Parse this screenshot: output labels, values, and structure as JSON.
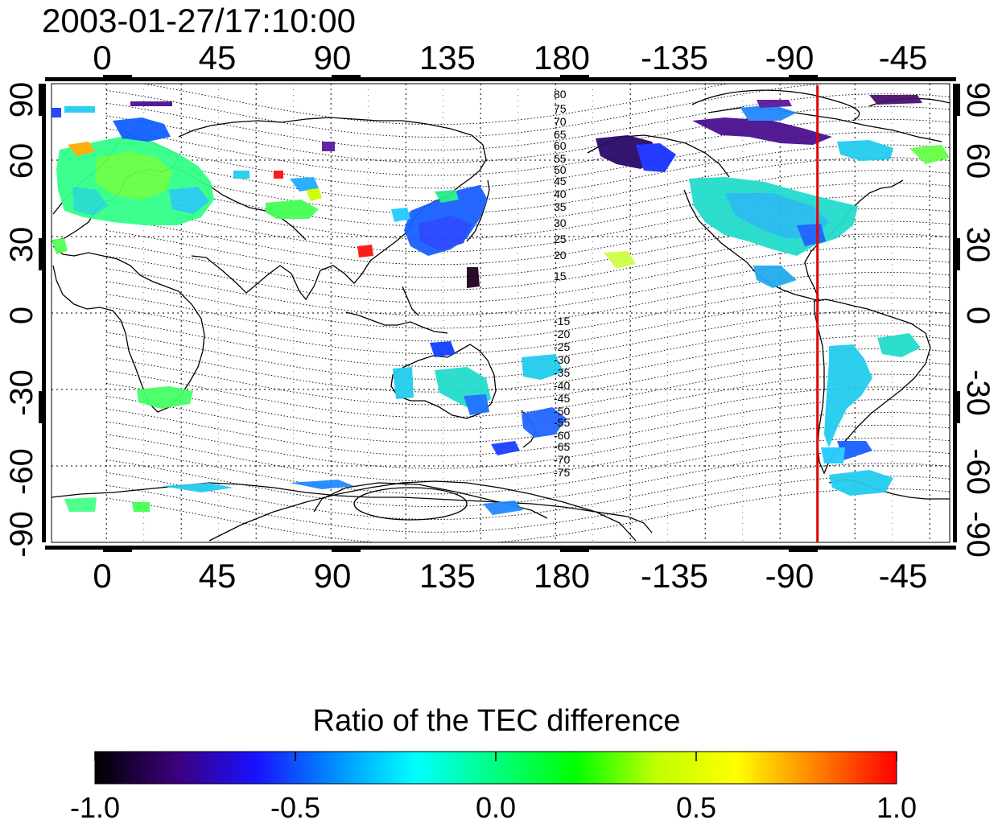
{
  "title": "2003-01-27/17:10:00",
  "map": {
    "lon_labels": [
      "0",
      "45",
      "90",
      "135",
      "180",
      "-135",
      "-90",
      "-45"
    ],
    "lat_labels_left": [
      "90",
      "60",
      "30",
      "0",
      "-30",
      "-60",
      "-90"
    ],
    "lat_labels_right": [
      "90",
      "60",
      "30",
      "0",
      "-30",
      "-60",
      "-90"
    ],
    "contour_labels_north": [
      "80",
      "75",
      "70",
      "65",
      "60",
      "55",
      "50",
      "45",
      "40",
      "35",
      "30",
      "25",
      "20",
      "15"
    ],
    "contour_labels_south": [
      "-15",
      "-20",
      "-25",
      "-30",
      "-35",
      "-40",
      "-45",
      "-50",
      "-55",
      "-60",
      "-65",
      "-70",
      "-75"
    ],
    "red_line_lon": -75,
    "grid": true
  },
  "colorbar": {
    "title": "Ratio of the TEC difference",
    "tick_labels": [
      "-1.0",
      "-0.5",
      "0.0",
      "0.5",
      "1.0"
    ],
    "min": -1.0,
    "max": 1.0,
    "colors": [
      "#000000",
      "#3c007a",
      "#1a10ff",
      "#0090ff",
      "#00ffff",
      "#00ff80",
      "#00ff00",
      "#c0ff00",
      "#ffff00",
      "#ff8000",
      "#ff0000"
    ]
  },
  "colors": {
    "red_line": "#e00000",
    "land": "#000000"
  }
}
